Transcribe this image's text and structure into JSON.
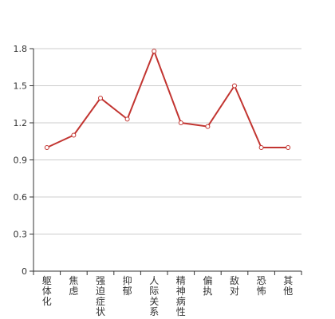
{
  "chart_data": {
    "type": "line",
    "title": "",
    "xlabel": "",
    "ylabel": "",
    "categories": [
      "躯体化",
      "焦虑",
      "强迫症状",
      "抑郁",
      "人际关系",
      "精神病性",
      "偏执",
      "敌对",
      "恐怖",
      "其他"
    ],
    "series": [
      {
        "values": [
          1.0,
          1.1,
          1.4,
          1.23,
          1.78,
          1.2,
          1.17,
          1.5,
          1.0,
          1.0
        ]
      }
    ],
    "ylim": [
      0,
      1.8
    ],
    "yticks": [
      "0",
      "0.3",
      "0.6",
      "0.9",
      "1.2",
      "1.5",
      "1.8"
    ],
    "grid": true,
    "legend": "none",
    "colors": {
      "line": "#c23531",
      "grid": "#cccccc",
      "axis": "#333333",
      "text": "#333333"
    }
  }
}
